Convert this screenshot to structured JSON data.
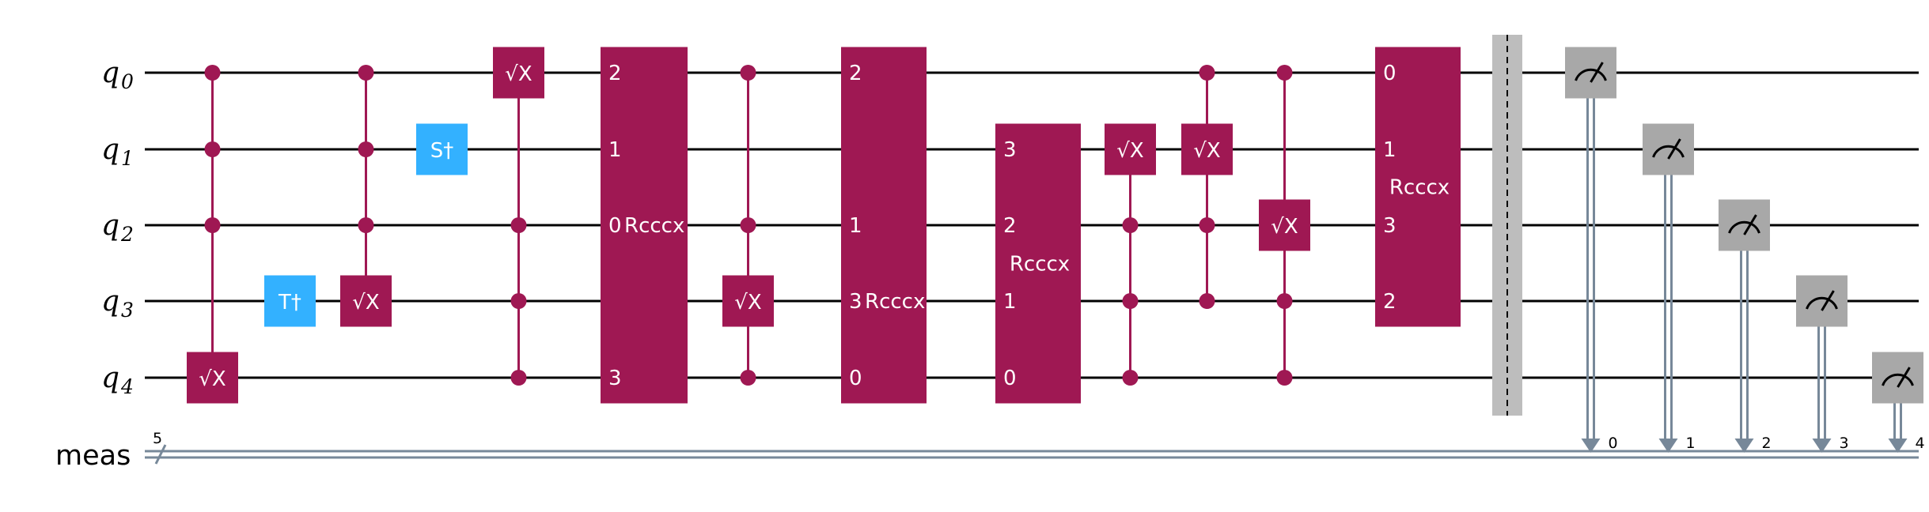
{
  "colors": {
    "wire": "#000000",
    "controlled": "#9f1853",
    "clifford": "#33b1ff",
    "measure": "#a8a8a8",
    "classical": "#778899",
    "barrier": "#bdbdbd"
  },
  "qubits": [
    {
      "name": "q",
      "index": "0"
    },
    {
      "name": "q",
      "index": "1"
    },
    {
      "name": "q",
      "index": "2"
    },
    {
      "name": "q",
      "index": "3"
    },
    {
      "name": "q",
      "index": "4"
    }
  ],
  "classical_register": {
    "label": "meas",
    "size": "5",
    "bits": [
      "0",
      "1",
      "2",
      "3",
      "4"
    ]
  },
  "gates": [
    {
      "type": "controlled",
      "label": "√X",
      "controls": [
        0,
        1,
        2
      ],
      "target": 4
    },
    {
      "type": "single",
      "label": "T†",
      "qubit": 3
    },
    {
      "type": "controlled",
      "label": "√X",
      "controls": [
        0,
        1,
        2
      ],
      "target": 3
    },
    {
      "type": "single",
      "label": "S†",
      "qubit": 1
    },
    {
      "type": "controlled",
      "label": "√X",
      "controls": [
        2,
        3,
        4
      ],
      "target": 0
    },
    {
      "type": "multi",
      "label": "Rcccx",
      "qubits": [
        0,
        1,
        2,
        4
      ],
      "wire_labels": [
        "2",
        "1",
        "0",
        "3"
      ],
      "label_inline": true
    },
    {
      "type": "controlled",
      "label": "√X",
      "controls": [
        0,
        2,
        4
      ],
      "target": 3
    },
    {
      "type": "multi",
      "label": "Rcccx",
      "qubits": [
        0,
        2,
        3,
        4
      ],
      "wire_labels": [
        "2",
        "1",
        "3",
        "0"
      ],
      "label_inline": true
    },
    {
      "type": "multi",
      "label": "Rcccx",
      "qubits": [
        1,
        2,
        3,
        4
      ],
      "wire_labels": [
        "3",
        "2",
        "1",
        "0"
      ],
      "label_inline": false
    },
    {
      "type": "controlled",
      "label": "√X",
      "controls": [
        2,
        3,
        4
      ],
      "target": 1
    },
    {
      "type": "controlled",
      "label": "√X",
      "controls": [
        0,
        2,
        3
      ],
      "target": 1
    },
    {
      "type": "controlled",
      "label": "√X",
      "controls": [
        0,
        3,
        4
      ],
      "target": 2
    },
    {
      "type": "multi",
      "label": "Rcccx",
      "qubits": [
        0,
        1,
        2,
        3
      ],
      "wire_labels": [
        "0",
        "1",
        "3",
        "2"
      ],
      "label_inline": false
    },
    {
      "type": "barrier"
    },
    {
      "type": "measure",
      "qubit": 0,
      "bit": "0"
    },
    {
      "type": "measure",
      "qubit": 1,
      "bit": "1"
    },
    {
      "type": "measure",
      "qubit": 2,
      "bit": "2"
    },
    {
      "type": "measure",
      "qubit": 3,
      "bit": "3"
    },
    {
      "type": "measure",
      "qubit": 4,
      "bit": "4"
    }
  ]
}
